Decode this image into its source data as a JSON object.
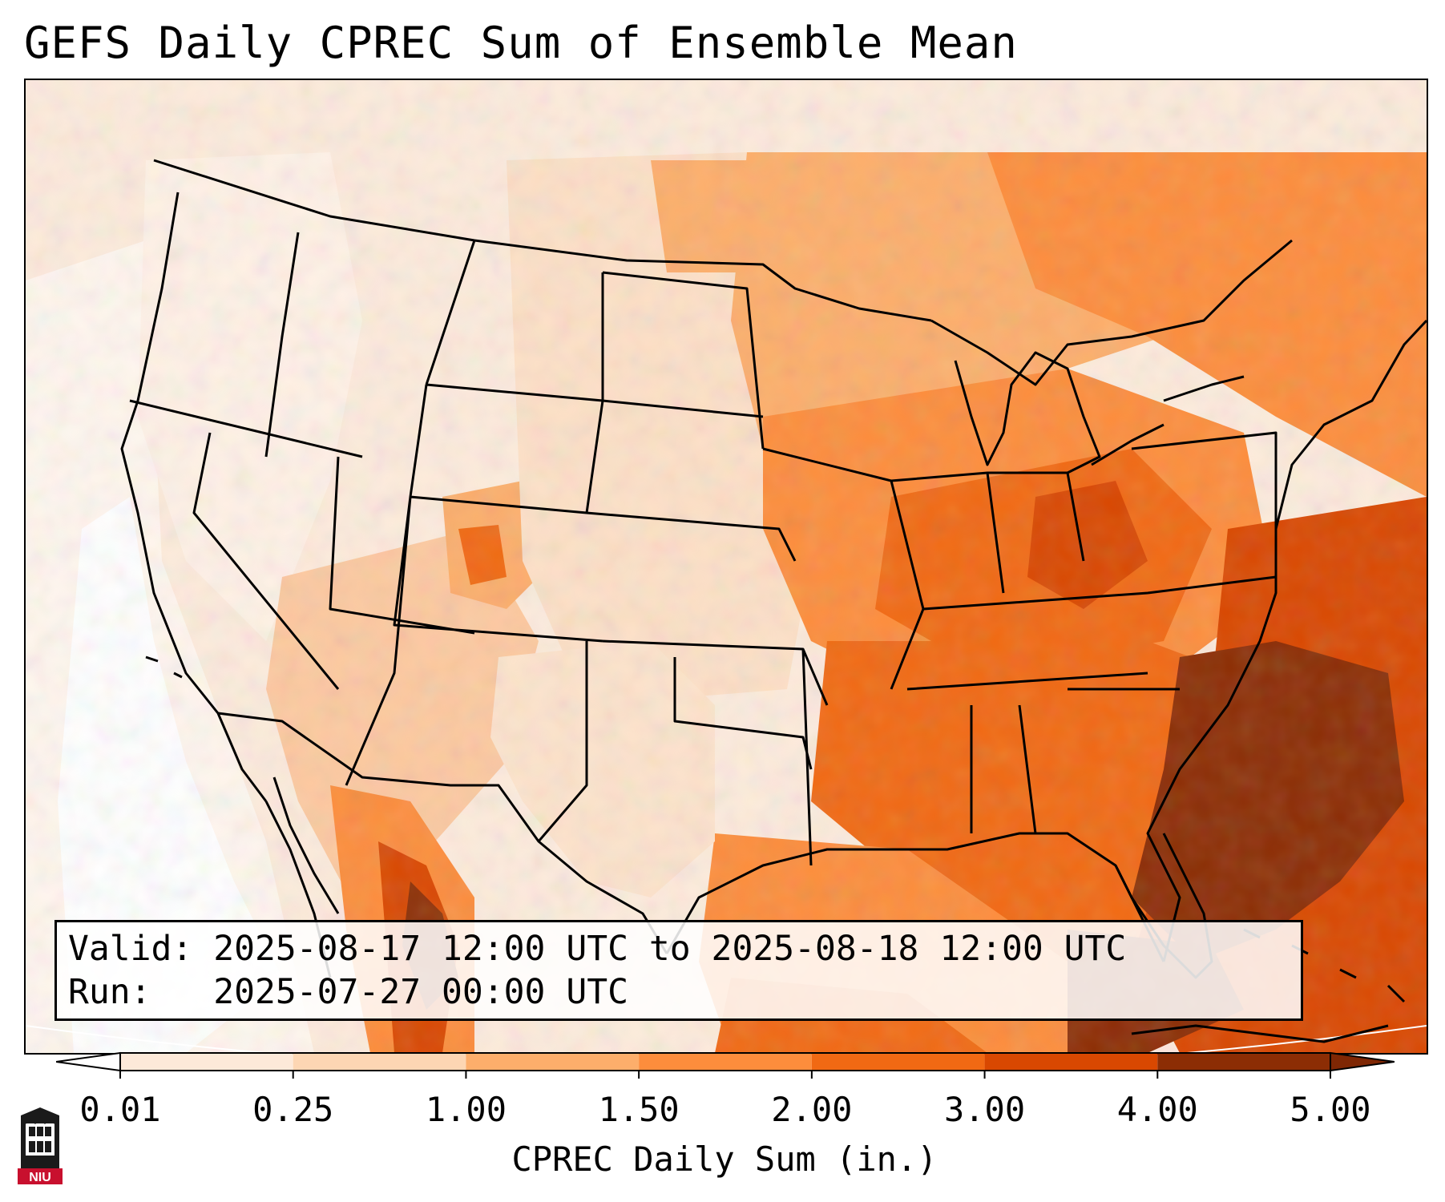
{
  "title": "GEFS Daily CPREC Sum of Ensemble Mean",
  "info": {
    "valid_label": "Valid:",
    "valid_value": "2025-08-17 12:00 UTC to 2025-08-18 12:00 UTC",
    "run_label": "Run:",
    "run_value": "2025-07-27 00:00 UTC"
  },
  "colorbar": {
    "label": "CPREC Daily Sum (in.)",
    "ticks": [
      "0.01",
      "0.25",
      "1.00",
      "1.50",
      "2.00",
      "3.00",
      "4.00",
      "5.00"
    ],
    "colors": [
      "#fde9d9",
      "#fdd6b3",
      "#fdae6b",
      "#fd8d3c",
      "#f16913",
      "#d94801",
      "#8c2d04"
    ],
    "under_color": "#ffffff",
    "over_color": "#7f2704"
  },
  "logo": {
    "text": "NIU",
    "icon": "niu-university-logo-icon"
  },
  "map": {
    "projection": "lambert-conformal",
    "region": "CONUS",
    "boundaries": "state-and-country-outlines"
  }
}
